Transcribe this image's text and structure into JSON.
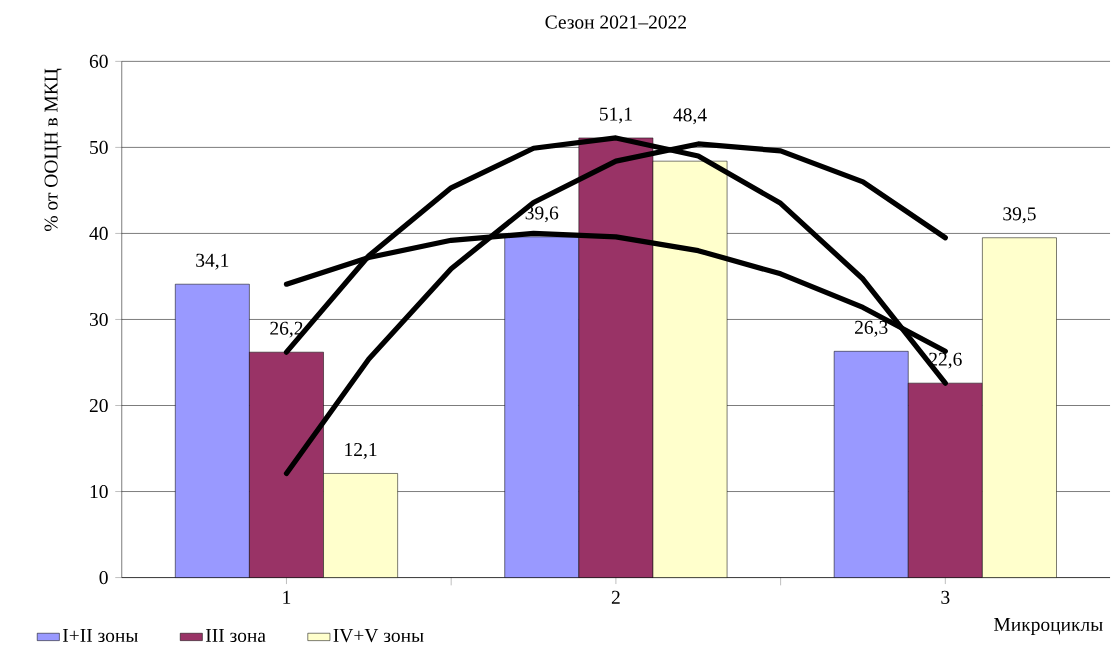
{
  "chart_data": {
    "type": "bar",
    "title": "Сезон 2021–2022",
    "xlabel": "Микроциклы",
    "ylabel": "% от ООЦН в МКЦ",
    "x": [
      1,
      2,
      3
    ],
    "xlim": [
      0.5,
      3.5
    ],
    "xticks": [
      1,
      {
        "value": 1.5,
        "label": null
      },
      2,
      {
        "value": 2.5,
        "label": null
      },
      3
    ],
    "ylim": [
      0,
      60
    ],
    "yticks": [
      0,
      10,
      20,
      30,
      40,
      50,
      60
    ],
    "grid": "y",
    "legend": "bottom",
    "series": [
      {
        "name": "I+II зоны",
        "color": "#9999ff",
        "values": [
          34.1,
          39.6,
          26.3
        ],
        "value_labels": [
          "34,1",
          "39,6",
          "26,3"
        ]
      },
      {
        "name": "III зона",
        "color": "#993366",
        "values": [
          26.2,
          51.1,
          22.6
        ],
        "value_labels": [
          "26,2",
          "51,1",
          "22,6"
        ]
      },
      {
        "name": "IV+V зоны",
        "color": "#ffffcc",
        "values": [
          12.1,
          48.4,
          39.5
        ],
        "value_labels": [
          "12,1",
          "48,4",
          "39,5"
        ]
      },
      {
        "type": "line",
        "color": "#000000",
        "x": [
          1,
          1.25,
          1.5,
          1.75,
          2,
          2.25,
          2.5,
          2.75,
          3
        ],
        "values": [
          34.1,
          37.2,
          39.2,
          40.0,
          39.6,
          38.0,
          35.3,
          31.4,
          26.3
        ]
      },
      {
        "type": "line",
        "color": "#000000",
        "x": [
          1,
          1.25,
          1.5,
          1.75,
          2,
          2.25,
          2.5,
          2.75,
          3
        ],
        "values": [
          26.2,
          37.4,
          45.3,
          49.9,
          51.1,
          49.0,
          43.5,
          34.7,
          22.6
        ]
      },
      {
        "type": "line",
        "color": "#000000",
        "x": [
          1,
          1.25,
          1.5,
          1.75,
          2,
          2.25,
          2.5,
          2.75,
          3
        ],
        "values": [
          12.1,
          25.4,
          35.9,
          43.6,
          48.4,
          50.4,
          49.6,
          46.0,
          39.5
        ]
      }
    ]
  }
}
